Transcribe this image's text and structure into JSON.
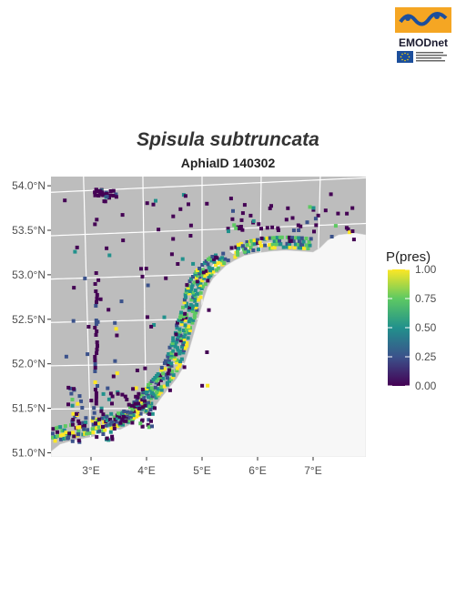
{
  "title": "Spisula subtruncata",
  "subtitle": "AphiaID 140302",
  "logo": {
    "text": "EMODnet",
    "small_text": "European Marine Observation and Data Network",
    "colors": {
      "orange": "#f5a623",
      "blue": "#1c4f9c",
      "dark": "#1a1a2e"
    }
  },
  "map": {
    "lon_range": [
      2.3,
      7.9
    ],
    "lat_range": [
      51.0,
      54.07
    ],
    "lon_ticks": [
      {
        "v": 3,
        "label": "3°E"
      },
      {
        "v": 4,
        "label": "4°E"
      },
      {
        "v": 5,
        "label": "5°E"
      },
      {
        "v": 6,
        "label": "6°E"
      },
      {
        "v": 7,
        "label": "7°E"
      }
    ],
    "lat_ticks": [
      {
        "v": 51.0,
        "label": "51.0°N"
      },
      {
        "v": 51.5,
        "label": "51.5°N"
      },
      {
        "v": 52.0,
        "label": "52.0°N"
      },
      {
        "v": 52.5,
        "label": "52.5°N"
      },
      {
        "v": 53.0,
        "label": "53.0°N"
      },
      {
        "v": 53.5,
        "label": "53.5°N"
      },
      {
        "v": 54.0,
        "label": "54.0°N"
      }
    ],
    "sea_color": "#bdbdbd",
    "land_color": "#f7f7f7",
    "grid_color": "#ffffff"
  },
  "legend": {
    "title": "P(pres)",
    "ticks": [
      {
        "v": 1.0,
        "label": "1.00"
      },
      {
        "v": 0.75,
        "label": "0.75"
      },
      {
        "v": 0.5,
        "label": "0.50"
      },
      {
        "v": 0.25,
        "label": "0.25"
      },
      {
        "v": 0.0,
        "label": "0.00"
      }
    ],
    "colors": [
      "#440154",
      "#3b528b",
      "#21918c",
      "#5ec962",
      "#fde725"
    ]
  }
}
